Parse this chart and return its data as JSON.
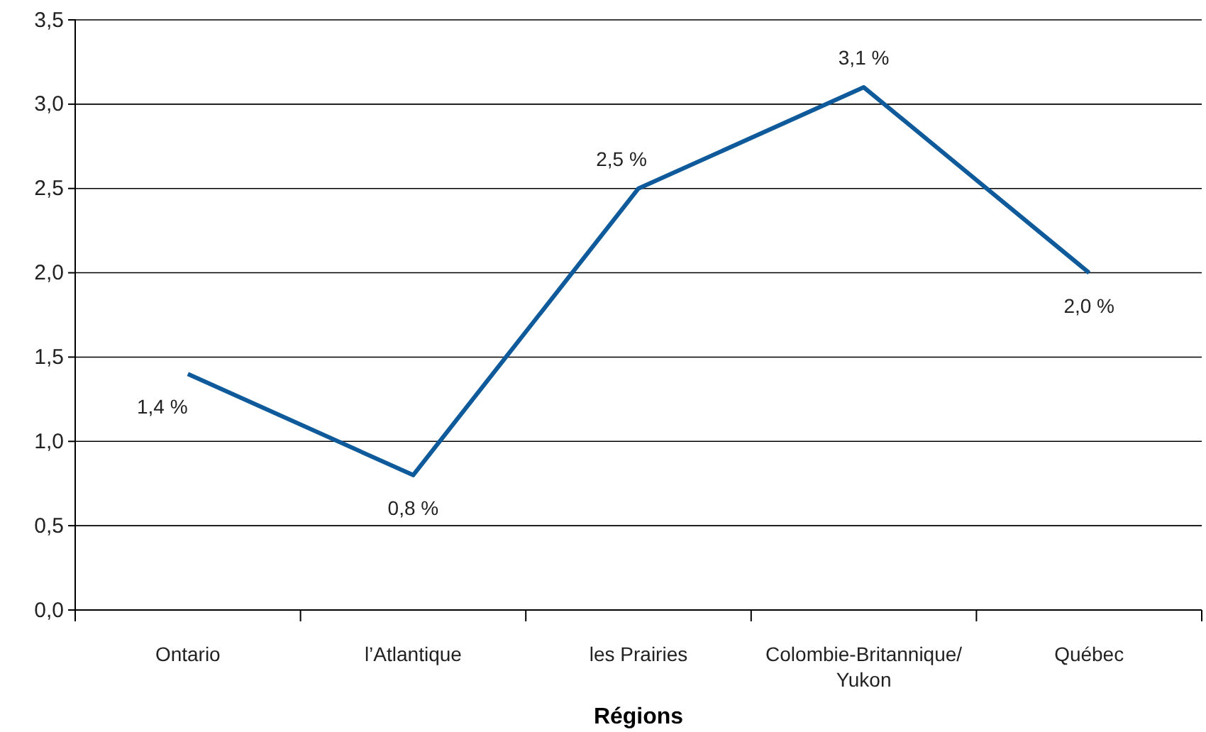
{
  "chart_data": {
    "type": "line",
    "xlabel": "Régions",
    "categories": [
      "Ontario",
      "l’Atlantique",
      "les Prairies",
      "Colombie-Britannique/\nYukon",
      "Québec"
    ],
    "series": [
      {
        "color": "#0e5a9a",
        "values": [
          1.4,
          0.8,
          2.5,
          3.1,
          2.0
        ],
        "value_labels": [
          "1,4 %",
          "0,8 %",
          "2,5 %",
          "3,1 %",
          "2,0 %"
        ]
      }
    ],
    "ylim": [
      0,
      3.5
    ],
    "yticks": [
      {
        "value": 0,
        "label": "0,0"
      },
      {
        "value": 0.5,
        "label": "0,5"
      },
      {
        "value": 1,
        "label": "1,0"
      },
      {
        "value": 1.5,
        "label": "1,5"
      },
      {
        "value": 2,
        "label": "2,0"
      },
      {
        "value": 2.5,
        "label": "2,5"
      },
      {
        "value": 3,
        "label": "3,0"
      },
      {
        "value": 3.5,
        "label": "3,5"
      }
    ],
    "grid": "y",
    "marker": "none",
    "line_style": "solid"
  }
}
